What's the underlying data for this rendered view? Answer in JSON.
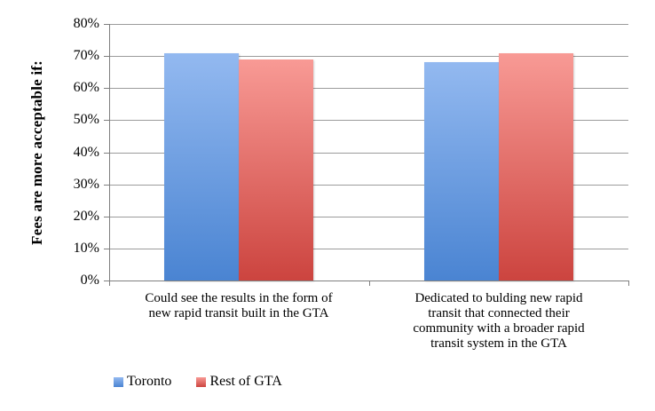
{
  "chart_data": {
    "type": "bar",
    "title": "",
    "ylabel": "Fees are more acceptable if:",
    "xlabel": "",
    "ylim": [
      0,
      80
    ],
    "ytick_step": 10,
    "ytick_labels": [
      "0%",
      "10%",
      "20%",
      "30%",
      "40%",
      "50%",
      "60%",
      "70%",
      "80%"
    ],
    "grid": true,
    "legend_position": "bottom",
    "categories": [
      "Could see the results in the form of new rapid transit built in the GTA",
      "Dedicated to bulding new rapid transit that connected their community with a broader rapid transit system in the GTA"
    ],
    "category_label_lines": [
      [
        "Could see the results in the form of",
        "new rapid transit built in the GTA"
      ],
      [
        "Dedicated to bulding new rapid",
        "transit that connected their",
        "community with a broader rapid",
        "transit system in the GTA"
      ]
    ],
    "series": [
      {
        "name": "Toronto",
        "values": [
          71,
          68
        ],
        "color": "#6d9ce4",
        "color_top": "#93b9f0",
        "color_bottom": "#4a84d2"
      },
      {
        "name": "Rest of GTA",
        "values": [
          69,
          71
        ],
        "color": "#e4534e",
        "color_top": "#f89a95",
        "color_bottom": "#cc443f"
      }
    ]
  },
  "colors": {
    "background": "#ffffff",
    "gridline": "#9b9b9b",
    "axis": "#7f7f7f",
    "text": "#000000"
  }
}
